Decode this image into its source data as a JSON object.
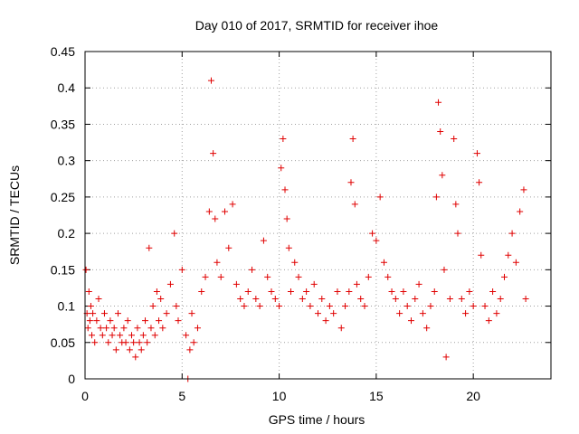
{
  "chart_data": {
    "type": "scatter",
    "title": "Day 010 of 2017, SRMTID for receiver ihoe",
    "xlabel": "GPS time / hours",
    "ylabel": "SRMTID / TECUs",
    "xlim": [
      0,
      24
    ],
    "ylim": [
      0,
      0.45
    ],
    "xticks": [
      0,
      5,
      10,
      15,
      20
    ],
    "xtick_labels": [
      "0",
      "5",
      "10",
      "15",
      "20"
    ],
    "yticks": [
      0,
      0.05,
      0.1,
      0.15,
      0.2,
      0.25,
      0.3,
      0.35,
      0.4,
      0.45
    ],
    "ytick_labels": [
      "0",
      "0.05",
      "0.1",
      "0.15",
      "0.2",
      "0.25",
      "0.3",
      "0.35",
      "0.4",
      "0.45"
    ],
    "grid": true,
    "marker": "+",
    "color": "#e00000",
    "series": [
      {
        "name": "SRMTID",
        "points": [
          [
            0.05,
            0.15
          ],
          [
            0.1,
            0.09
          ],
          [
            0.15,
            0.07
          ],
          [
            0.2,
            0.12
          ],
          [
            0.25,
            0.08
          ],
          [
            0.3,
            0.1
          ],
          [
            0.35,
            0.06
          ],
          [
            0.4,
            0.09
          ],
          [
            0.5,
            0.05
          ],
          [
            0.6,
            0.08
          ],
          [
            0.7,
            0.11
          ],
          [
            0.8,
            0.07
          ],
          [
            0.9,
            0.06
          ],
          [
            1.0,
            0.09
          ],
          [
            1.1,
            0.07
          ],
          [
            1.2,
            0.05
          ],
          [
            1.3,
            0.08
          ],
          [
            1.4,
            0.06
          ],
          [
            1.5,
            0.07
          ],
          [
            1.6,
            0.04
          ],
          [
            1.7,
            0.09
          ],
          [
            1.8,
            0.06
          ],
          [
            1.9,
            0.05
          ],
          [
            2.0,
            0.07
          ],
          [
            2.1,
            0.05
          ],
          [
            2.2,
            0.08
          ],
          [
            2.3,
            0.04
          ],
          [
            2.4,
            0.06
          ],
          [
            2.5,
            0.05
          ],
          [
            2.6,
            0.03
          ],
          [
            2.7,
            0.07
          ],
          [
            2.8,
            0.05
          ],
          [
            2.9,
            0.04
          ],
          [
            3.0,
            0.06
          ],
          [
            3.1,
            0.08
          ],
          [
            3.2,
            0.05
          ],
          [
            3.3,
            0.18
          ],
          [
            3.4,
            0.07
          ],
          [
            3.5,
            0.1
          ],
          [
            3.6,
            0.06
          ],
          [
            3.7,
            0.12
          ],
          [
            3.8,
            0.08
          ],
          [
            3.9,
            0.11
          ],
          [
            4.0,
            0.07
          ],
          [
            4.2,
            0.09
          ],
          [
            4.4,
            0.13
          ],
          [
            4.6,
            0.2
          ],
          [
            4.7,
            0.1
          ],
          [
            4.8,
            0.08
          ],
          [
            5.0,
            0.15
          ],
          [
            5.2,
            0.06
          ],
          [
            5.3,
            0.0
          ],
          [
            5.4,
            0.04
          ],
          [
            5.5,
            0.09
          ],
          [
            5.6,
            0.05
          ],
          [
            5.8,
            0.07
          ],
          [
            6.0,
            0.12
          ],
          [
            6.2,
            0.14
          ],
          [
            6.4,
            0.23
          ],
          [
            6.5,
            0.41
          ],
          [
            6.6,
            0.31
          ],
          [
            6.7,
            0.22
          ],
          [
            6.8,
            0.16
          ],
          [
            7.0,
            0.14
          ],
          [
            7.2,
            0.23
          ],
          [
            7.4,
            0.18
          ],
          [
            7.6,
            0.24
          ],
          [
            7.8,
            0.13
          ],
          [
            8.0,
            0.11
          ],
          [
            8.2,
            0.1
          ],
          [
            8.4,
            0.12
          ],
          [
            8.6,
            0.15
          ],
          [
            8.8,
            0.11
          ],
          [
            9.0,
            0.1
          ],
          [
            9.2,
            0.19
          ],
          [
            9.4,
            0.14
          ],
          [
            9.6,
            0.12
          ],
          [
            9.8,
            0.11
          ],
          [
            10.0,
            0.1
          ],
          [
            10.1,
            0.29
          ],
          [
            10.2,
            0.33
          ],
          [
            10.3,
            0.26
          ],
          [
            10.4,
            0.22
          ],
          [
            10.5,
            0.18
          ],
          [
            10.6,
            0.12
          ],
          [
            10.8,
            0.16
          ],
          [
            11.0,
            0.14
          ],
          [
            11.2,
            0.11
          ],
          [
            11.4,
            0.12
          ],
          [
            11.6,
            0.1
          ],
          [
            11.8,
            0.13
          ],
          [
            12.0,
            0.09
          ],
          [
            12.2,
            0.11
          ],
          [
            12.4,
            0.08
          ],
          [
            12.6,
            0.1
          ],
          [
            12.8,
            0.09
          ],
          [
            13.0,
            0.12
          ],
          [
            13.2,
            0.07
          ],
          [
            13.4,
            0.1
          ],
          [
            13.6,
            0.12
          ],
          [
            13.7,
            0.27
          ],
          [
            13.8,
            0.33
          ],
          [
            13.9,
            0.24
          ],
          [
            14.0,
            0.13
          ],
          [
            14.2,
            0.11
          ],
          [
            14.4,
            0.1
          ],
          [
            14.6,
            0.14
          ],
          [
            14.8,
            0.2
          ],
          [
            15.0,
            0.19
          ],
          [
            15.2,
            0.25
          ],
          [
            15.4,
            0.16
          ],
          [
            15.6,
            0.14
          ],
          [
            15.8,
            0.12
          ],
          [
            16.0,
            0.11
          ],
          [
            16.2,
            0.09
          ],
          [
            16.4,
            0.12
          ],
          [
            16.6,
            0.1
          ],
          [
            16.8,
            0.08
          ],
          [
            17.0,
            0.11
          ],
          [
            17.2,
            0.13
          ],
          [
            17.4,
            0.09
          ],
          [
            17.6,
            0.07
          ],
          [
            17.8,
            0.1
          ],
          [
            18.0,
            0.12
          ],
          [
            18.1,
            0.25
          ],
          [
            18.2,
            0.38
          ],
          [
            18.3,
            0.34
          ],
          [
            18.4,
            0.28
          ],
          [
            18.5,
            0.15
          ],
          [
            18.6,
            0.03
          ],
          [
            18.8,
            0.11
          ],
          [
            19.0,
            0.33
          ],
          [
            19.1,
            0.24
          ],
          [
            19.2,
            0.2
          ],
          [
            19.4,
            0.11
          ],
          [
            19.6,
            0.09
          ],
          [
            19.8,
            0.12
          ],
          [
            20.0,
            0.1
          ],
          [
            20.2,
            0.31
          ],
          [
            20.3,
            0.27
          ],
          [
            20.4,
            0.17
          ],
          [
            20.6,
            0.1
          ],
          [
            20.8,
            0.08
          ],
          [
            21.0,
            0.12
          ],
          [
            21.2,
            0.09
          ],
          [
            21.4,
            0.11
          ],
          [
            21.6,
            0.14
          ],
          [
            21.8,
            0.17
          ],
          [
            22.0,
            0.2
          ],
          [
            22.2,
            0.16
          ],
          [
            22.4,
            0.23
          ],
          [
            22.6,
            0.26
          ],
          [
            22.7,
            0.11
          ]
        ]
      }
    ]
  }
}
